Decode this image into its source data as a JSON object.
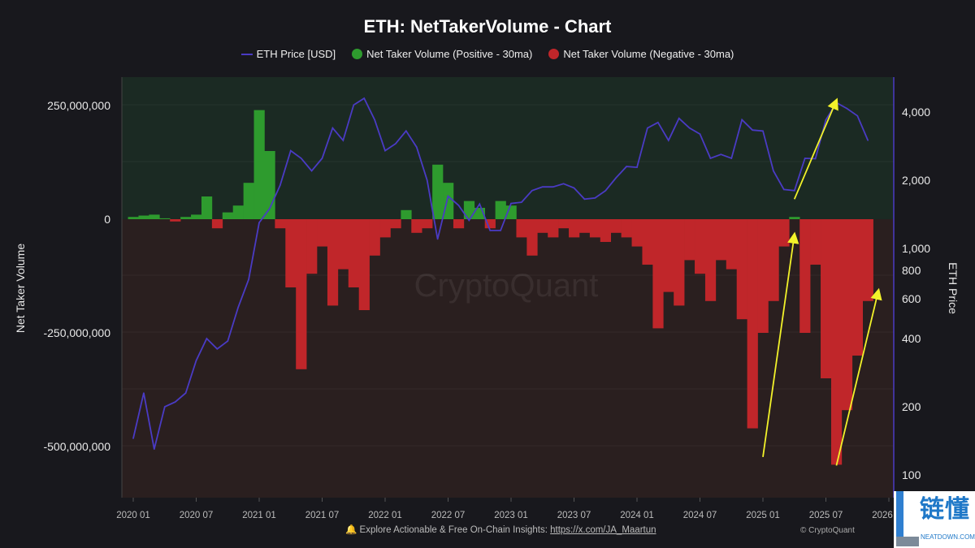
{
  "title": "ETH: NetTakerVolume - Chart",
  "legend": [
    {
      "label": "ETH Price [USD]",
      "color": "#4a3bc4",
      "kind": "line"
    },
    {
      "label": "Net Taker Volume (Positive - 30ma)",
      "color": "#2e9b2e",
      "kind": "dot"
    },
    {
      "label": "Net Taker Volume (Negative - 30ma)",
      "color": "#c0262a",
      "kind": "dot"
    }
  ],
  "footer": {
    "text": "Explore Actionable & Free On-Chain Insights: ",
    "link": "https://x.com/JA_Maartun",
    "icon": "bell-icon"
  },
  "copyright": "© CryptoQuant",
  "watermark": "CryptoQuant",
  "logo": {
    "cn": "链懂",
    "en": "NEATDOWN.COM"
  },
  "chart_data": {
    "type": "bar+line",
    "title": "ETH: NetTakerVolume - Chart",
    "ylabel_left": "Net Taker Volume",
    "ylabel_right": "ETH Price",
    "y_left_ticks": [
      "250,000,000",
      "0",
      "-250,000,000",
      "-500,000,000"
    ],
    "y_left_tick_values": [
      250000000,
      0,
      -250000000,
      -500000000
    ],
    "y_right_scale": "log",
    "y_right_ticks": [
      "4,000",
      "2,000",
      "1,000",
      "800",
      "600",
      "400",
      "200",
      "100"
    ],
    "y_right_tick_values": [
      4000,
      2000,
      1000,
      800,
      600,
      400,
      200,
      100
    ],
    "x_ticks": [
      "2020 01",
      "2020 07",
      "2021 01",
      "2021 07",
      "2022 01",
      "2022 07",
      "2023 01",
      "2023 07",
      "2024 01",
      "2024 07",
      "2025 01",
      "2025 07",
      "2026 01"
    ],
    "x_start": "2020-01",
    "colors": {
      "positive": "#2e9b2e",
      "negative": "#c0262a",
      "price": "#4a3bc4",
      "annotation": "#f2f22a"
    },
    "months": [
      "2020-01",
      "2020-02",
      "2020-03",
      "2020-04",
      "2020-05",
      "2020-06",
      "2020-07",
      "2020-08",
      "2020-09",
      "2020-10",
      "2020-11",
      "2020-12",
      "2021-01",
      "2021-02",
      "2021-03",
      "2021-04",
      "2021-05",
      "2021-06",
      "2021-07",
      "2021-08",
      "2021-09",
      "2021-10",
      "2021-11",
      "2021-12",
      "2022-01",
      "2022-02",
      "2022-03",
      "2022-04",
      "2022-05",
      "2022-06",
      "2022-07",
      "2022-08",
      "2022-09",
      "2022-10",
      "2022-11",
      "2022-12",
      "2023-01",
      "2023-02",
      "2023-03",
      "2023-04",
      "2023-05",
      "2023-06",
      "2023-07",
      "2023-08",
      "2023-09",
      "2023-10",
      "2023-11",
      "2023-12",
      "2024-01",
      "2024-02",
      "2024-03",
      "2024-04",
      "2024-05",
      "2024-06",
      "2024-07",
      "2024-08",
      "2024-09",
      "2024-10",
      "2024-11",
      "2024-12",
      "2025-01",
      "2025-02",
      "2025-03",
      "2025-04",
      "2025-05",
      "2025-06",
      "2025-07",
      "2025-08",
      "2025-09",
      "2025-10",
      "2025-11"
    ],
    "net_taker_volume": [
      5000000,
      8000000,
      10000000,
      2000000,
      -5000000,
      5000000,
      10000000,
      50000000,
      -20000000,
      15000000,
      30000000,
      80000000,
      240000000,
      150000000,
      -20000000,
      -150000000,
      -330000000,
      -120000000,
      -60000000,
      -190000000,
      -110000000,
      -150000000,
      -200000000,
      -80000000,
      -40000000,
      -20000000,
      20000000,
      -30000000,
      -20000000,
      120000000,
      80000000,
      -20000000,
      40000000,
      25000000,
      -20000000,
      40000000,
      30000000,
      -40000000,
      -80000000,
      -30000000,
      -40000000,
      -20000000,
      -40000000,
      -30000000,
      -40000000,
      -50000000,
      -30000000,
      -40000000,
      -60000000,
      -100000000,
      -240000000,
      -160000000,
      -190000000,
      -90000000,
      -120000000,
      -180000000,
      -90000000,
      -110000000,
      -220000000,
      -460000000,
      -250000000,
      -180000000,
      -60000000,
      5000000,
      -250000000,
      -100000000,
      -350000000,
      -540000000,
      -420000000,
      -300000000,
      -180000000
    ],
    "eth_price": [
      145,
      230,
      130,
      200,
      210,
      230,
      320,
      400,
      360,
      390,
      550,
      730,
      1300,
      1500,
      1900,
      2700,
      2500,
      2200,
      2500,
      3400,
      3000,
      4300,
      4600,
      3700,
      2700,
      2900,
      3300,
      2800,
      2000,
      1100,
      1700,
      1550,
      1330,
      1570,
      1200,
      1200,
      1580,
      1600,
      1800,
      1870,
      1870,
      1930,
      1850,
      1650,
      1670,
      1800,
      2050,
      2300,
      2280,
      3400,
      3600,
      3000,
      3750,
      3400,
      3200,
      2500,
      2600,
      2500,
      3700,
      3330,
      3300,
      2200,
      1820,
      1800,
      2500,
      2490,
      3700,
      4400,
      4150,
      3850,
      3000
    ],
    "annotations": [
      {
        "type": "arrow",
        "from": [
          "2025-01",
          120
        ],
        "to": [
          "2025-04",
          1150
        ]
      },
      {
        "type": "arrow",
        "from": [
          "2025-04",
          1650
        ],
        "to": [
          "2025-08",
          4500
        ]
      },
      {
        "type": "arrow",
        "from": [
          "2025-08",
          110
        ],
        "to": [
          "2025-12",
          650
        ]
      }
    ],
    "grid": true,
    "legend_position": "top"
  }
}
